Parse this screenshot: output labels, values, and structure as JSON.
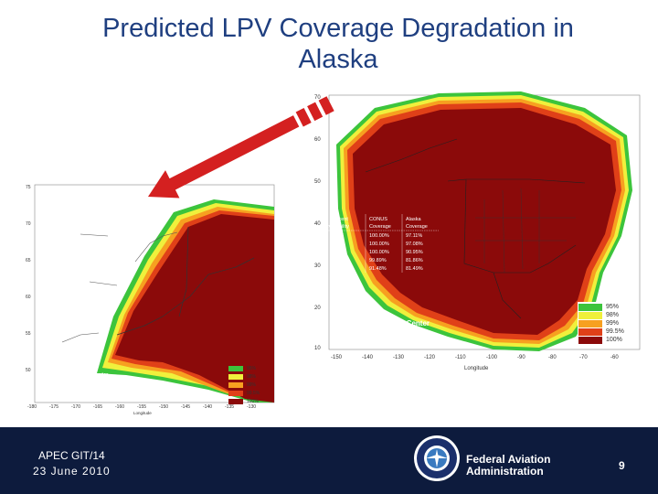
{
  "slide": {
    "title_line1": "Predicted LPV Coverage Degradation in",
    "title_line2": "Alaska"
  },
  "footer": {
    "meeting": "APEC GIT/14",
    "date": "23 June 2010",
    "agency_line1": "Federal Aviation",
    "agency_line2": "Administration",
    "page_number": "9"
  },
  "maps": {
    "credit_line1": "W.J.H. FAA Technical Center",
    "credit_line2": "WAAS Test Team",
    "x_axis_label": "Longitude",
    "legend": [
      {
        "label": "95%",
        "color": "#3cc43c"
      },
      {
        "label": "98%",
        "color": "#f0f03c"
      },
      {
        "label": "99%",
        "color": "#f7a020"
      },
      {
        "label": "99.5%",
        "color": "#e04018"
      },
      {
        "label": "100%",
        "color": "#8b0a0a"
      }
    ],
    "right": {
      "lat_ticks": [
        "70",
        "60",
        "50",
        "40",
        "30",
        "20",
        "10"
      ],
      "lon_ticks": [
        "-150",
        "-140",
        "-130",
        "-120",
        "-110",
        "-100",
        "-90",
        "-80",
        "-70",
        "-60"
      ]
    },
    "left": {
      "lat_ticks": [
        "75",
        "70",
        "65",
        "60",
        "55",
        "50"
      ],
      "lon_ticks": [
        "-180",
        "-175",
        "-170",
        "-165",
        "-160",
        "-155",
        "-150",
        "-145",
        "-140",
        "-135",
        "-130"
      ]
    },
    "table": {
      "header1": [
        "Percent",
        "CONUS",
        "Alaska"
      ],
      "header2": [
        "Availability",
        "Coverage",
        "Coverage"
      ],
      "rows": [
        [
          "95",
          "100.00%",
          "97.11%"
        ],
        [
          "98",
          "100.00%",
          "97.08%"
        ],
        [
          "99",
          "100.00%",
          "90.95%"
        ],
        [
          "99.5",
          "99.89%",
          "81.86%"
        ],
        [
          "100",
          "91.48%",
          "81.49%"
        ]
      ]
    }
  }
}
